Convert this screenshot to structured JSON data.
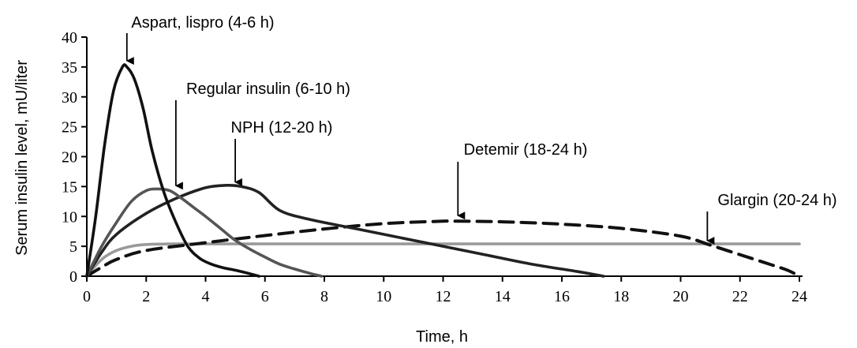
{
  "chart_data": {
    "type": "line",
    "xlabel": "Time, h",
    "ylabel": "Serum insulin level, mU/liter",
    "xlim": [
      0,
      24
    ],
    "ylim": [
      0,
      40
    ],
    "xticks": [
      "0",
      "2",
      "4",
      "6",
      "8",
      "10",
      "12",
      "14",
      "16",
      "18",
      "20",
      "22",
      "24"
    ],
    "yticks": [
      "0",
      "5",
      "10",
      "15",
      "20",
      "25",
      "30",
      "35",
      "40"
    ],
    "grid": false,
    "series": [
      {
        "name": "Aspart, lispro (4-6 h)",
        "color": "#111111",
        "dash": "solid",
        "x": [
          0,
          0.3,
          0.6,
          0.9,
          1.2,
          1.35,
          1.6,
          1.9,
          2.2,
          2.6,
          3.0,
          3.4,
          3.8,
          4.2,
          4.6,
          5.0,
          5.5,
          5.8
        ],
        "y": [
          0,
          10,
          22,
          31,
          35,
          35,
          33,
          28,
          21,
          14,
          9,
          5,
          3,
          2,
          1.4,
          1,
          0.4,
          0
        ]
      },
      {
        "name": "Regular insulin (6-10 h)",
        "color": "#555555",
        "dash": "solid",
        "x": [
          0,
          0.5,
          1.0,
          1.5,
          2.0,
          2.4,
          2.8,
          3.2,
          3.6,
          4.0,
          4.5,
          5.0,
          5.5,
          6.0,
          6.5,
          7.0,
          7.5,
          7.9
        ],
        "y": [
          0,
          5,
          9,
          12.5,
          14.3,
          14.6,
          14.3,
          13,
          11.5,
          10,
          8,
          6,
          4.5,
          3.2,
          2,
          1.2,
          0.5,
          0
        ]
      },
      {
        "name": "NPH (12-20 h)",
        "color": "#222222",
        "dash": "solid",
        "x": [
          0,
          0.5,
          1,
          2,
          3,
          4,
          4.7,
          5.2,
          5.8,
          6.5,
          7.5,
          9,
          10.5,
          12,
          13.5,
          15,
          16.5,
          17.4
        ],
        "y": [
          0,
          4,
          7,
          10.5,
          13,
          14.8,
          15.2,
          15,
          14,
          11,
          9.5,
          8,
          6.5,
          5,
          3.5,
          2,
          0.8,
          0
        ]
      },
      {
        "name": "Detemir (18-24 h)",
        "color": "#111111",
        "dash": "dashed",
        "x": [
          0,
          0.5,
          1,
          2,
          4,
          6,
          8,
          10,
          12,
          12.5,
          14,
          16,
          18,
          20,
          21,
          22,
          23,
          23.6,
          24
        ],
        "y": [
          0,
          1.5,
          2.8,
          4.3,
          5.6,
          6.8,
          7.9,
          8.8,
          9.2,
          9.2,
          9.1,
          8.7,
          8,
          6.7,
          5.2,
          3.6,
          2,
          1,
          0
        ]
      },
      {
        "name": "Glargin (20-24 h)",
        "color": "#9a9a9a",
        "dash": "solid",
        "x": [
          0,
          0.3,
          0.6,
          1.0,
          1.5,
          2.0,
          3.0,
          5.0,
          10,
          15,
          20,
          24
        ],
        "y": [
          0,
          1.8,
          3.2,
          4.3,
          5.0,
          5.3,
          5.4,
          5.4,
          5.4,
          5.4,
          5.4,
          5.4
        ]
      }
    ],
    "annotations": [
      {
        "text": "Aspart, lispro (4-6 h)",
        "arrow_x": 1.35,
        "arrow_y": 35.5
      },
      {
        "text": "Regular insulin (6-10 h)",
        "arrow_x": 3.0,
        "arrow_y": 14.6
      },
      {
        "text": "NPH (12-20 h)",
        "arrow_x": 5.0,
        "arrow_y": 15.2
      },
      {
        "text": "Detemir (18-24 h)",
        "arrow_x": 12.5,
        "arrow_y": 9.6
      },
      {
        "text": "Glargin (20-24 h)",
        "arrow_x": 20.9,
        "arrow_y": 5.4
      }
    ]
  }
}
